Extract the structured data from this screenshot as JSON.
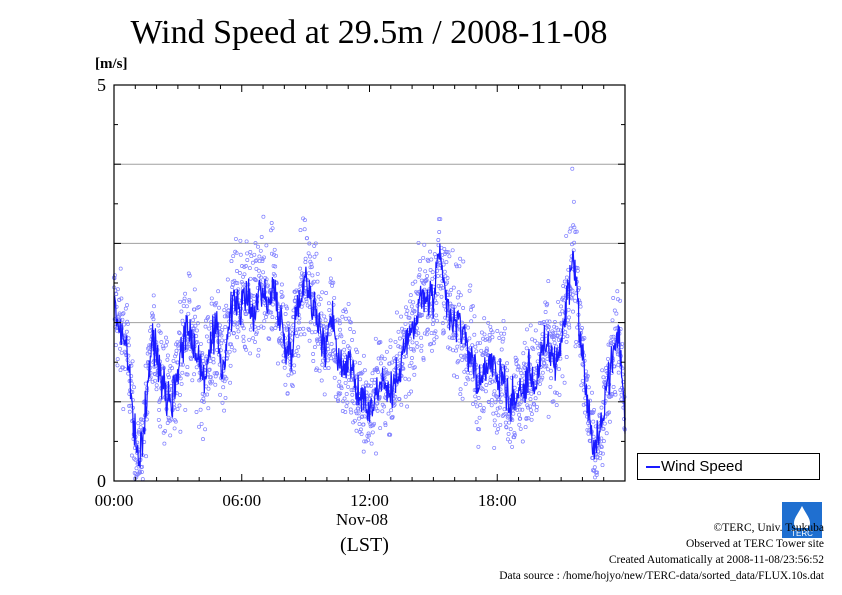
{
  "chart_data": {
    "type": "scatter",
    "title": "Wind Speed at 29.5m / 2008-11-08",
    "ylabel": "[m/s]",
    "xlabel_date": "Nov-08",
    "xlabel_unit": "(LST)",
    "ylim": [
      0,
      5
    ],
    "y_ticks": [
      "0",
      "5"
    ],
    "y_gridlines": [
      1,
      2,
      3,
      4
    ],
    "xlim": [
      0,
      24
    ],
    "x_ticks": [
      {
        "hour": 0,
        "label": "00:00"
      },
      {
        "hour": 6,
        "label": "06:00"
      },
      {
        "hour": 12,
        "label": "12:00"
      },
      {
        "hour": 18,
        "label": "18:00"
      }
    ],
    "legend": {
      "placement": "right",
      "label": "Wind Speed"
    },
    "series": [
      {
        "name": "Wind Speed",
        "color": "#1a1aff",
        "scatter_color": "#7f7fff",
        "mean_profile": [
          [
            0.0,
            2.2
          ],
          [
            0.3,
            1.9
          ],
          [
            0.6,
            1.7
          ],
          [
            0.8,
            1.1
          ],
          [
            1.0,
            0.4
          ],
          [
            1.2,
            0.3
          ],
          [
            1.5,
            0.9
          ],
          [
            1.8,
            1.8
          ],
          [
            2.1,
            1.5
          ],
          [
            2.4,
            1.2
          ],
          [
            2.7,
            1.0
          ],
          [
            3.0,
            1.4
          ],
          [
            3.3,
            1.9
          ],
          [
            3.6,
            1.9
          ],
          [
            3.9,
            1.6
          ],
          [
            4.2,
            1.3
          ],
          [
            4.5,
            1.6
          ],
          [
            4.8,
            1.9
          ],
          [
            5.1,
            1.4
          ],
          [
            5.4,
            2.0
          ],
          [
            5.7,
            2.3
          ],
          [
            6.0,
            2.2
          ],
          [
            6.3,
            2.3
          ],
          [
            6.6,
            2.1
          ],
          [
            6.9,
            2.5
          ],
          [
            7.2,
            2.2
          ],
          [
            7.5,
            2.4
          ],
          [
            7.8,
            2.1
          ],
          [
            8.1,
            1.6
          ],
          [
            8.4,
            1.8
          ],
          [
            8.7,
            2.3
          ],
          [
            9.0,
            2.6
          ],
          [
            9.3,
            2.3
          ],
          [
            9.6,
            2.0
          ],
          [
            9.9,
            1.6
          ],
          [
            10.2,
            2.2
          ],
          [
            10.5,
            1.6
          ],
          [
            10.8,
            1.4
          ],
          [
            11.1,
            1.6
          ],
          [
            11.4,
            1.0
          ],
          [
            11.7,
            1.1
          ],
          [
            12.0,
            0.9
          ],
          [
            12.3,
            1.1
          ],
          [
            12.6,
            1.3
          ],
          [
            12.9,
            1.1
          ],
          [
            13.2,
            1.2
          ],
          [
            13.5,
            1.6
          ],
          [
            13.8,
            1.8
          ],
          [
            14.1,
            1.9
          ],
          [
            14.4,
            2.3
          ],
          [
            14.7,
            2.3
          ],
          [
            15.0,
            2.3
          ],
          [
            15.3,
            2.8
          ],
          [
            15.6,
            2.3
          ],
          [
            15.9,
            1.9
          ],
          [
            16.2,
            2.1
          ],
          [
            16.5,
            1.7
          ],
          [
            16.8,
            1.6
          ],
          [
            17.1,
            1.2
          ],
          [
            17.4,
            1.4
          ],
          [
            17.7,
            1.6
          ],
          [
            18.0,
            1.2
          ],
          [
            18.3,
            1.4
          ],
          [
            18.6,
            0.9
          ],
          [
            18.9,
            1.1
          ],
          [
            19.2,
            1.1
          ],
          [
            19.5,
            1.4
          ],
          [
            19.8,
            1.2
          ],
          [
            20.1,
            1.6
          ],
          [
            20.4,
            1.7
          ],
          [
            20.7,
            1.5
          ],
          [
            21.0,
            1.7
          ],
          [
            21.3,
            2.4
          ],
          [
            21.6,
            2.9
          ],
          [
            21.9,
            1.8
          ],
          [
            22.2,
            1.1
          ],
          [
            22.5,
            0.4
          ],
          [
            22.8,
            0.5
          ],
          [
            23.1,
            1.2
          ],
          [
            23.4,
            1.5
          ],
          [
            23.7,
            1.9
          ],
          [
            24.0,
            0.8
          ]
        ],
        "scatter_spread": 0.45
      }
    ]
  },
  "credits": {
    "copyright": "©TERC, Univ. Tsukuba",
    "observed": "Observed at TERC Tower site",
    "created": "Created Automatically at 2008-11-08/23:56:52",
    "source": "Data source : /home/hojyo/new/TERC-data/sorted_data/FLUX.10s.dat"
  },
  "logo_text": "TERC"
}
